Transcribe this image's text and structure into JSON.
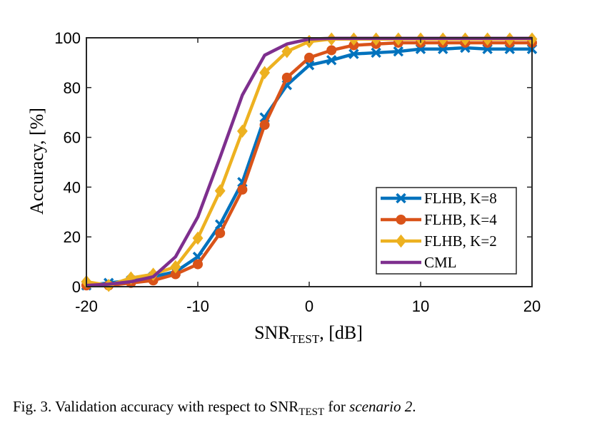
{
  "chart_data": {
    "type": "line",
    "xlabel": {
      "main": "SNR",
      "sub": "TEST",
      "suffix": ", [dB]"
    },
    "ylabel": "Accuracy, [%]",
    "xlim": [
      -20,
      20
    ],
    "ylim": [
      0,
      100
    ],
    "xticks": [
      -20,
      -10,
      0,
      10,
      20
    ],
    "yticks": [
      0,
      20,
      40,
      60,
      80,
      100
    ],
    "xtick_labels": [
      "-20",
      "-10",
      "0",
      "10",
      "20"
    ],
    "ytick_labels": [
      "0",
      "20",
      "40",
      "60",
      "80",
      "100"
    ],
    "grid": false,
    "legend_position": "lower-right",
    "x": [
      -20,
      -18,
      -16,
      -14,
      -12,
      -10,
      -8,
      -6,
      -4,
      -2,
      0,
      2,
      4,
      6,
      8,
      10,
      12,
      14,
      16,
      18,
      20
    ],
    "series": [
      {
        "name": "FLHB, K=8",
        "color": "#0072BD",
        "marker": "x",
        "values": [
          0.5,
          1.5,
          2.5,
          4,
          6,
          12,
          25,
          42,
          68,
          81,
          89,
          91,
          93.5,
          94,
          94.5,
          95.5,
          95.5,
          96,
          95.5,
          95.5,
          95.5
        ]
      },
      {
        "name": "FLHB, K=4",
        "color": "#D95319",
        "marker": "circle",
        "values": [
          0.5,
          0.5,
          1.5,
          2.5,
          5,
          9,
          21.5,
          39,
          65,
          84,
          92,
          95,
          97,
          97.5,
          98,
          98,
          98,
          98,
          98,
          98,
          98
        ]
      },
      {
        "name": "FLHB, K=2",
        "color": "#EDB120",
        "marker": "diamond",
        "values": [
          2,
          0.5,
          3.5,
          5,
          8,
          19.5,
          38.5,
          62.5,
          86,
          94.5,
          98.5,
          99.5,
          99.5,
          99.5,
          99.5,
          99.5,
          99.5,
          99.5,
          99.5,
          99.5,
          99.5
        ]
      },
      {
        "name": "CML",
        "color": "#7E2F8E",
        "marker": "none",
        "values": [
          0.5,
          1,
          2,
          4,
          12,
          28,
          52,
          77,
          93,
          97.5,
          99.5,
          99.8,
          99.8,
          99.8,
          99.8,
          99.8,
          99.8,
          99.8,
          99.8,
          99.8,
          99.8
        ]
      }
    ]
  },
  "caption": {
    "prefix": "Fig. 3.  Validation accuracy with respect to ",
    "snr_main": "SNR",
    "snr_sub": "TEST",
    "for_text": " for ",
    "scenario": "scenario 2",
    "period": "."
  }
}
